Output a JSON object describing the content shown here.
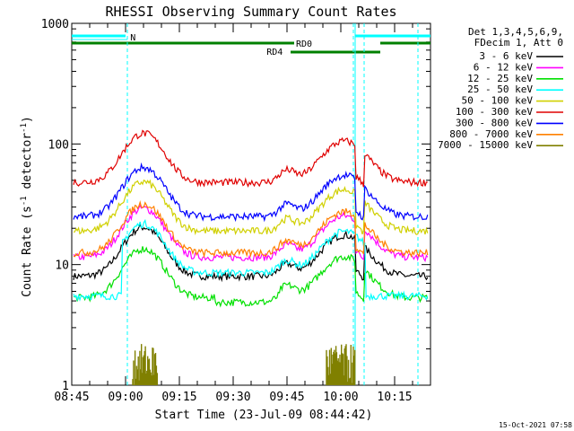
{
  "chart_data": {
    "type": "line",
    "title": "RHESSI Observing Summary Count Rates",
    "xlabel": "Start Time (23-Jul-09 08:44:42)",
    "ylabel_main": "Count Rate (s",
    "ylabel_sup1": "-1",
    "ylabel_mid": " detector",
    "ylabel_sup2": "-1",
    "ylabel_end": ")",
    "y_scale": "log",
    "ylim": [
      1,
      1000
    ],
    "xlim_minutes": [
      0,
      100
    ],
    "x_ticks": [
      {
        "label": "08:45",
        "m": 0
      },
      {
        "label": "09:00",
        "m": 15
      },
      {
        "label": "09:15",
        "m": 30
      },
      {
        "label": "09:30",
        "m": 45
      },
      {
        "label": "09:45",
        "m": 60
      },
      {
        "label": "10:00",
        "m": 75
      },
      {
        "label": "10:15",
        "m": 90
      }
    ],
    "y_ticks": [
      {
        "label": "1",
        "v": 1
      },
      {
        "label": "10",
        "v": 10
      },
      {
        "label": "100",
        "v": 100
      },
      {
        "label": "1000",
        "v": 1000
      }
    ],
    "legend_header": [
      "Det 1,3,4,5,6,9,",
      "FDecim 1, Att 0"
    ],
    "legend_position": "right",
    "series": [
      {
        "name": "3 - 6 keV",
        "color": "#000000"
      },
      {
        "name": "6 - 12 keV",
        "color": "#ff00ff"
      },
      {
        "name": "12 - 25 keV",
        "color": "#00e000"
      },
      {
        "name": "25 - 50 keV",
        "color": "#00ffff"
      },
      {
        "name": "50 - 100 keV",
        "color": "#d0d000"
      },
      {
        "name": "100 - 300 keV",
        "color": "#e00000"
      },
      {
        "name": "300 - 800 keV",
        "color": "#0000ff"
      },
      {
        "name": "800 - 7000 keV",
        "color": "#ff8000"
      },
      {
        "name": "7000 - 15000 keV",
        "color": "#808000"
      }
    ],
    "flag_labels": {
      "night": "N",
      "rd0": "RD0",
      "rd4": "RD4"
    },
    "flag_colors": {
      "night": "#00ffff",
      "rd": "#008000"
    },
    "timestamp": "15-Oct-2021 07:58"
  }
}
